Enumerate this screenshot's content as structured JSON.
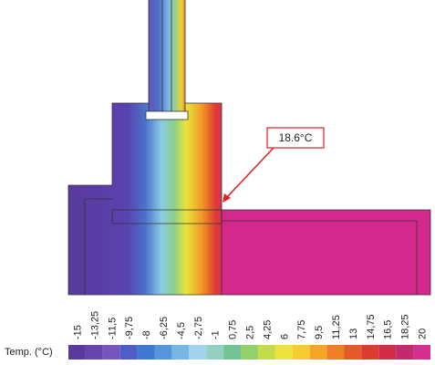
{
  "annotation": "18.6°C",
  "legend": {
    "title": "Temp. (°C)",
    "labels": [
      "-15",
      "-13,25",
      "-11,5",
      "-9,75",
      "-8",
      "-6,25",
      "-4,5",
      "-2,75",
      "-1",
      "0,75",
      "2,5",
      "4,25",
      "6",
      "7,75",
      "9,5",
      "11,25",
      "13",
      "14,75",
      "16,5",
      "18,25",
      "20"
    ],
    "colors": [
      "#5a3a9c",
      "#6646ac",
      "#7556bd",
      "#4f5ec6",
      "#3f78d0",
      "#5596dc",
      "#78b6e6",
      "#a4d3ee",
      "#93d0c0",
      "#72c494",
      "#93d06c",
      "#c4dc48",
      "#ece43c",
      "#f6cd2c",
      "#f4a624",
      "#ee7f24",
      "#e7592a",
      "#de3a30",
      "#d22c48",
      "#c7276c",
      "#d72c90"
    ]
  }
}
